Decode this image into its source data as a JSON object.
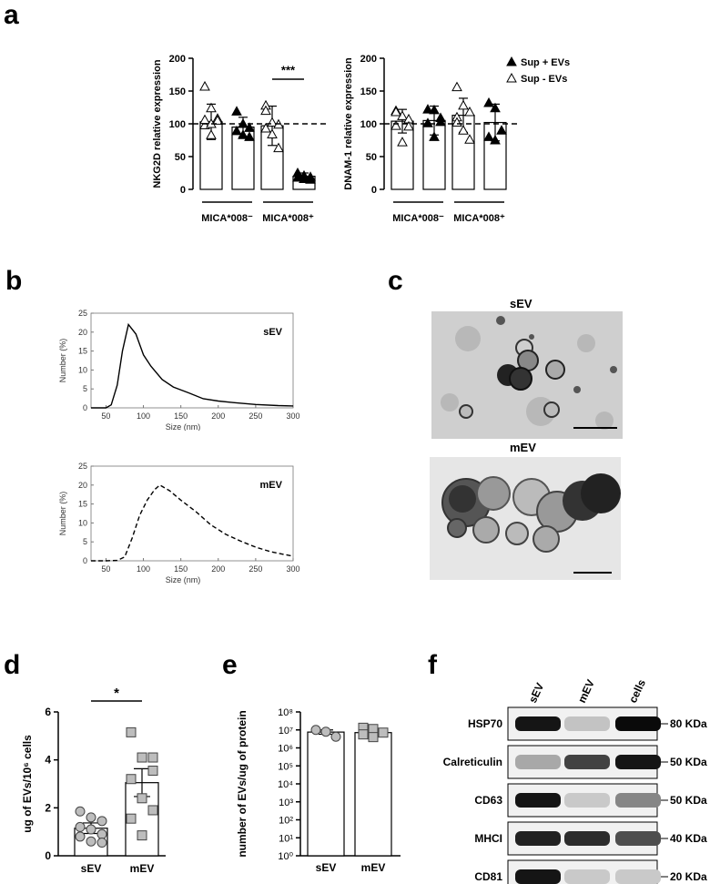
{
  "panel_letters": [
    "a",
    "b",
    "c",
    "d",
    "e",
    "f"
  ],
  "panel_c": {
    "labels": [
      "sEV",
      "mEV"
    ]
  },
  "panel_f": {
    "columns": [
      "sEV",
      "mEV",
      "cells"
    ],
    "bands": [
      {
        "protein": "HSP70",
        "size": "80 KDa",
        "intensity": [
          0.95,
          0.18,
          1.0
        ]
      },
      {
        "protein": "Calreticulin",
        "size": "50 KDa",
        "intensity": [
          0.3,
          0.75,
          0.95
        ]
      },
      {
        "protein": "CD63",
        "size": "50 KDa",
        "intensity": [
          0.95,
          0.15,
          0.45
        ]
      },
      {
        "protein": "MHCI",
        "size": "40 KDa",
        "intensity": [
          0.9,
          0.85,
          0.7
        ]
      },
      {
        "protein": "CD81",
        "size": "20 KDa",
        "intensity": [
          0.95,
          0.15,
          0.15
        ]
      }
    ]
  },
  "chart_data": [
    {
      "id": "a-left",
      "type": "bar",
      "ylabel": "NKG2D relative expression",
      "ylim": [
        0,
        200
      ],
      "yticks": [
        "0",
        "50",
        "100",
        "150",
        "200"
      ],
      "reference_line": 100,
      "group_labels": [
        "MICA*008⁻",
        "MICA*008⁺"
      ],
      "bars": [
        {
          "group": "MICA*008⁻",
          "series": "Sup -  EVs",
          "mean": 103,
          "err": 27,
          "points": [
            157,
            124,
            108,
            98,
            83,
            105,
            106,
            100
          ]
        },
        {
          "group": "MICA*008⁻",
          "series": "Sup + EVs",
          "mean": 95,
          "err": 15,
          "points": [
            119,
            100,
            94,
            89,
            83,
            80
          ]
        },
        {
          "group": "MICA*008⁺",
          "series": "Sup -  EVs",
          "mean": 97,
          "err": 30,
          "points": [
            128,
            102,
            99,
            93,
            84,
            63,
            120
          ]
        },
        {
          "group": "MICA*008⁺",
          "series": "Sup + EVs",
          "mean": 20,
          "err": 5,
          "points": [
            25,
            21,
            19,
            18,
            16,
            15
          ]
        }
      ],
      "significance": "***"
    },
    {
      "id": "a-right",
      "type": "bar",
      "ylabel": "DNAM-1 relative expression",
      "ylim": [
        0,
        200
      ],
      "yticks": [
        "0",
        "50",
        "100",
        "150",
        "200"
      ],
      "reference_line": 100,
      "group_labels": [
        "MICA*008⁻",
        "MICA*008⁺"
      ],
      "legend": {
        "position": "top-right",
        "entries": [
          {
            "label": "Sup + EVs",
            "marker": "filled-triangle"
          },
          {
            "label": "Sup -  EVs",
            "marker": "open-triangle"
          }
        ]
      },
      "bars": [
        {
          "group": "MICA*008⁻",
          "series": "Sup -  EVs",
          "mean": 104,
          "err": 18,
          "points": [
            120,
            112,
            107,
            97,
            72,
            96,
            118
          ]
        },
        {
          "group": "MICA*008⁻",
          "series": "Sup + EVs",
          "mean": 105,
          "err": 22,
          "points": [
            122,
            121,
            109,
            101,
            80,
            103
          ]
        },
        {
          "group": "MICA*008⁺",
          "series": "Sup -  EVs",
          "mean": 113,
          "err": 26,
          "points": [
            156,
            128,
            118,
            110,
            90,
            76,
            102
          ]
        },
        {
          "group": "MICA*008⁺",
          "series": "Sup + EVs",
          "mean": 102,
          "err": 28,
          "points": [
            132,
            124,
            90,
            80,
            75
          ]
        }
      ]
    },
    {
      "id": "b-top",
      "type": "line",
      "title": "sEV",
      "xlabel": "Size (nm)",
      "ylabel": "Number (%)",
      "xlim": [
        30,
        300
      ],
      "ylim": [
        0,
        25
      ],
      "xticks": [
        "50",
        "100",
        "150",
        "200",
        "250",
        "300"
      ],
      "yticks": [
        "0",
        "5",
        "10",
        "15",
        "20",
        "25"
      ],
      "x": [
        30,
        50,
        57,
        65,
        72,
        80,
        90,
        100,
        110,
        125,
        140,
        160,
        180,
        200,
        220,
        250,
        280,
        300
      ],
      "y": [
        0,
        0,
        0.8,
        6,
        15,
        22,
        19.5,
        14,
        11,
        7.5,
        5.5,
        4,
        2.4,
        1.8,
        1.4,
        0.9,
        0.6,
        0.5
      ]
    },
    {
      "id": "b-bottom",
      "type": "line",
      "title": "mEV",
      "xlabel": "Size (nm)",
      "ylabel": "Number (%)",
      "xlim": [
        30,
        300
      ],
      "ylim": [
        0,
        25
      ],
      "xticks": [
        "50",
        "100",
        "150",
        "200",
        "250",
        "300"
      ],
      "yticks": [
        "0",
        "5",
        "10",
        "15",
        "20",
        "25"
      ],
      "x": [
        30,
        50,
        65,
        75,
        85,
        95,
        105,
        115,
        122,
        135,
        150,
        170,
        190,
        210,
        230,
        250,
        270,
        300
      ],
      "y": [
        0,
        0,
        0.1,
        1,
        6,
        12,
        16,
        18.8,
        20,
        18.5,
        16,
        13,
        9.5,
        7,
        5.2,
        3.6,
        2.4,
        1.2
      ]
    },
    {
      "id": "d",
      "type": "bar",
      "ylabel": "ug of EVs/10⁶ cells",
      "ylim": [
        0,
        6
      ],
      "yticks": [
        "0",
        "2",
        "4",
        "6"
      ],
      "categories": [
        "sEV",
        "mEV"
      ],
      "means": [
        1.15,
        3.05
      ],
      "errors": [
        0.22,
        0.58
      ],
      "points": [
        [
          1.85,
          1.6,
          1.45,
          1.2,
          1.1,
          0.9,
          0.8,
          0.6,
          0.55
        ],
        [
          5.15,
          4.1,
          3.55,
          3.2,
          2.4,
          1.9,
          1.55,
          0.85,
          4.1
        ]
      ],
      "significance": "*"
    },
    {
      "id": "e",
      "type": "bar",
      "ylabel": "number of EVs/ug of protein",
      "ylim": [
        0,
        8
      ],
      "log_scale": true,
      "yticks": [
        "10⁰",
        "10¹",
        "10²",
        "10³",
        "10⁴",
        "10⁵",
        "10⁶",
        "10⁷",
        "10⁸"
      ],
      "categories": [
        "sEV",
        "mEV"
      ],
      "means_log10": [
        6.88,
        6.85
      ],
      "errors_log10": [
        0.12,
        0.15
      ],
      "points_log10": [
        [
          7.0,
          6.9,
          6.62
        ],
        [
          7.12,
          7.05,
          6.85,
          6.75,
          6.6
        ]
      ]
    }
  ]
}
